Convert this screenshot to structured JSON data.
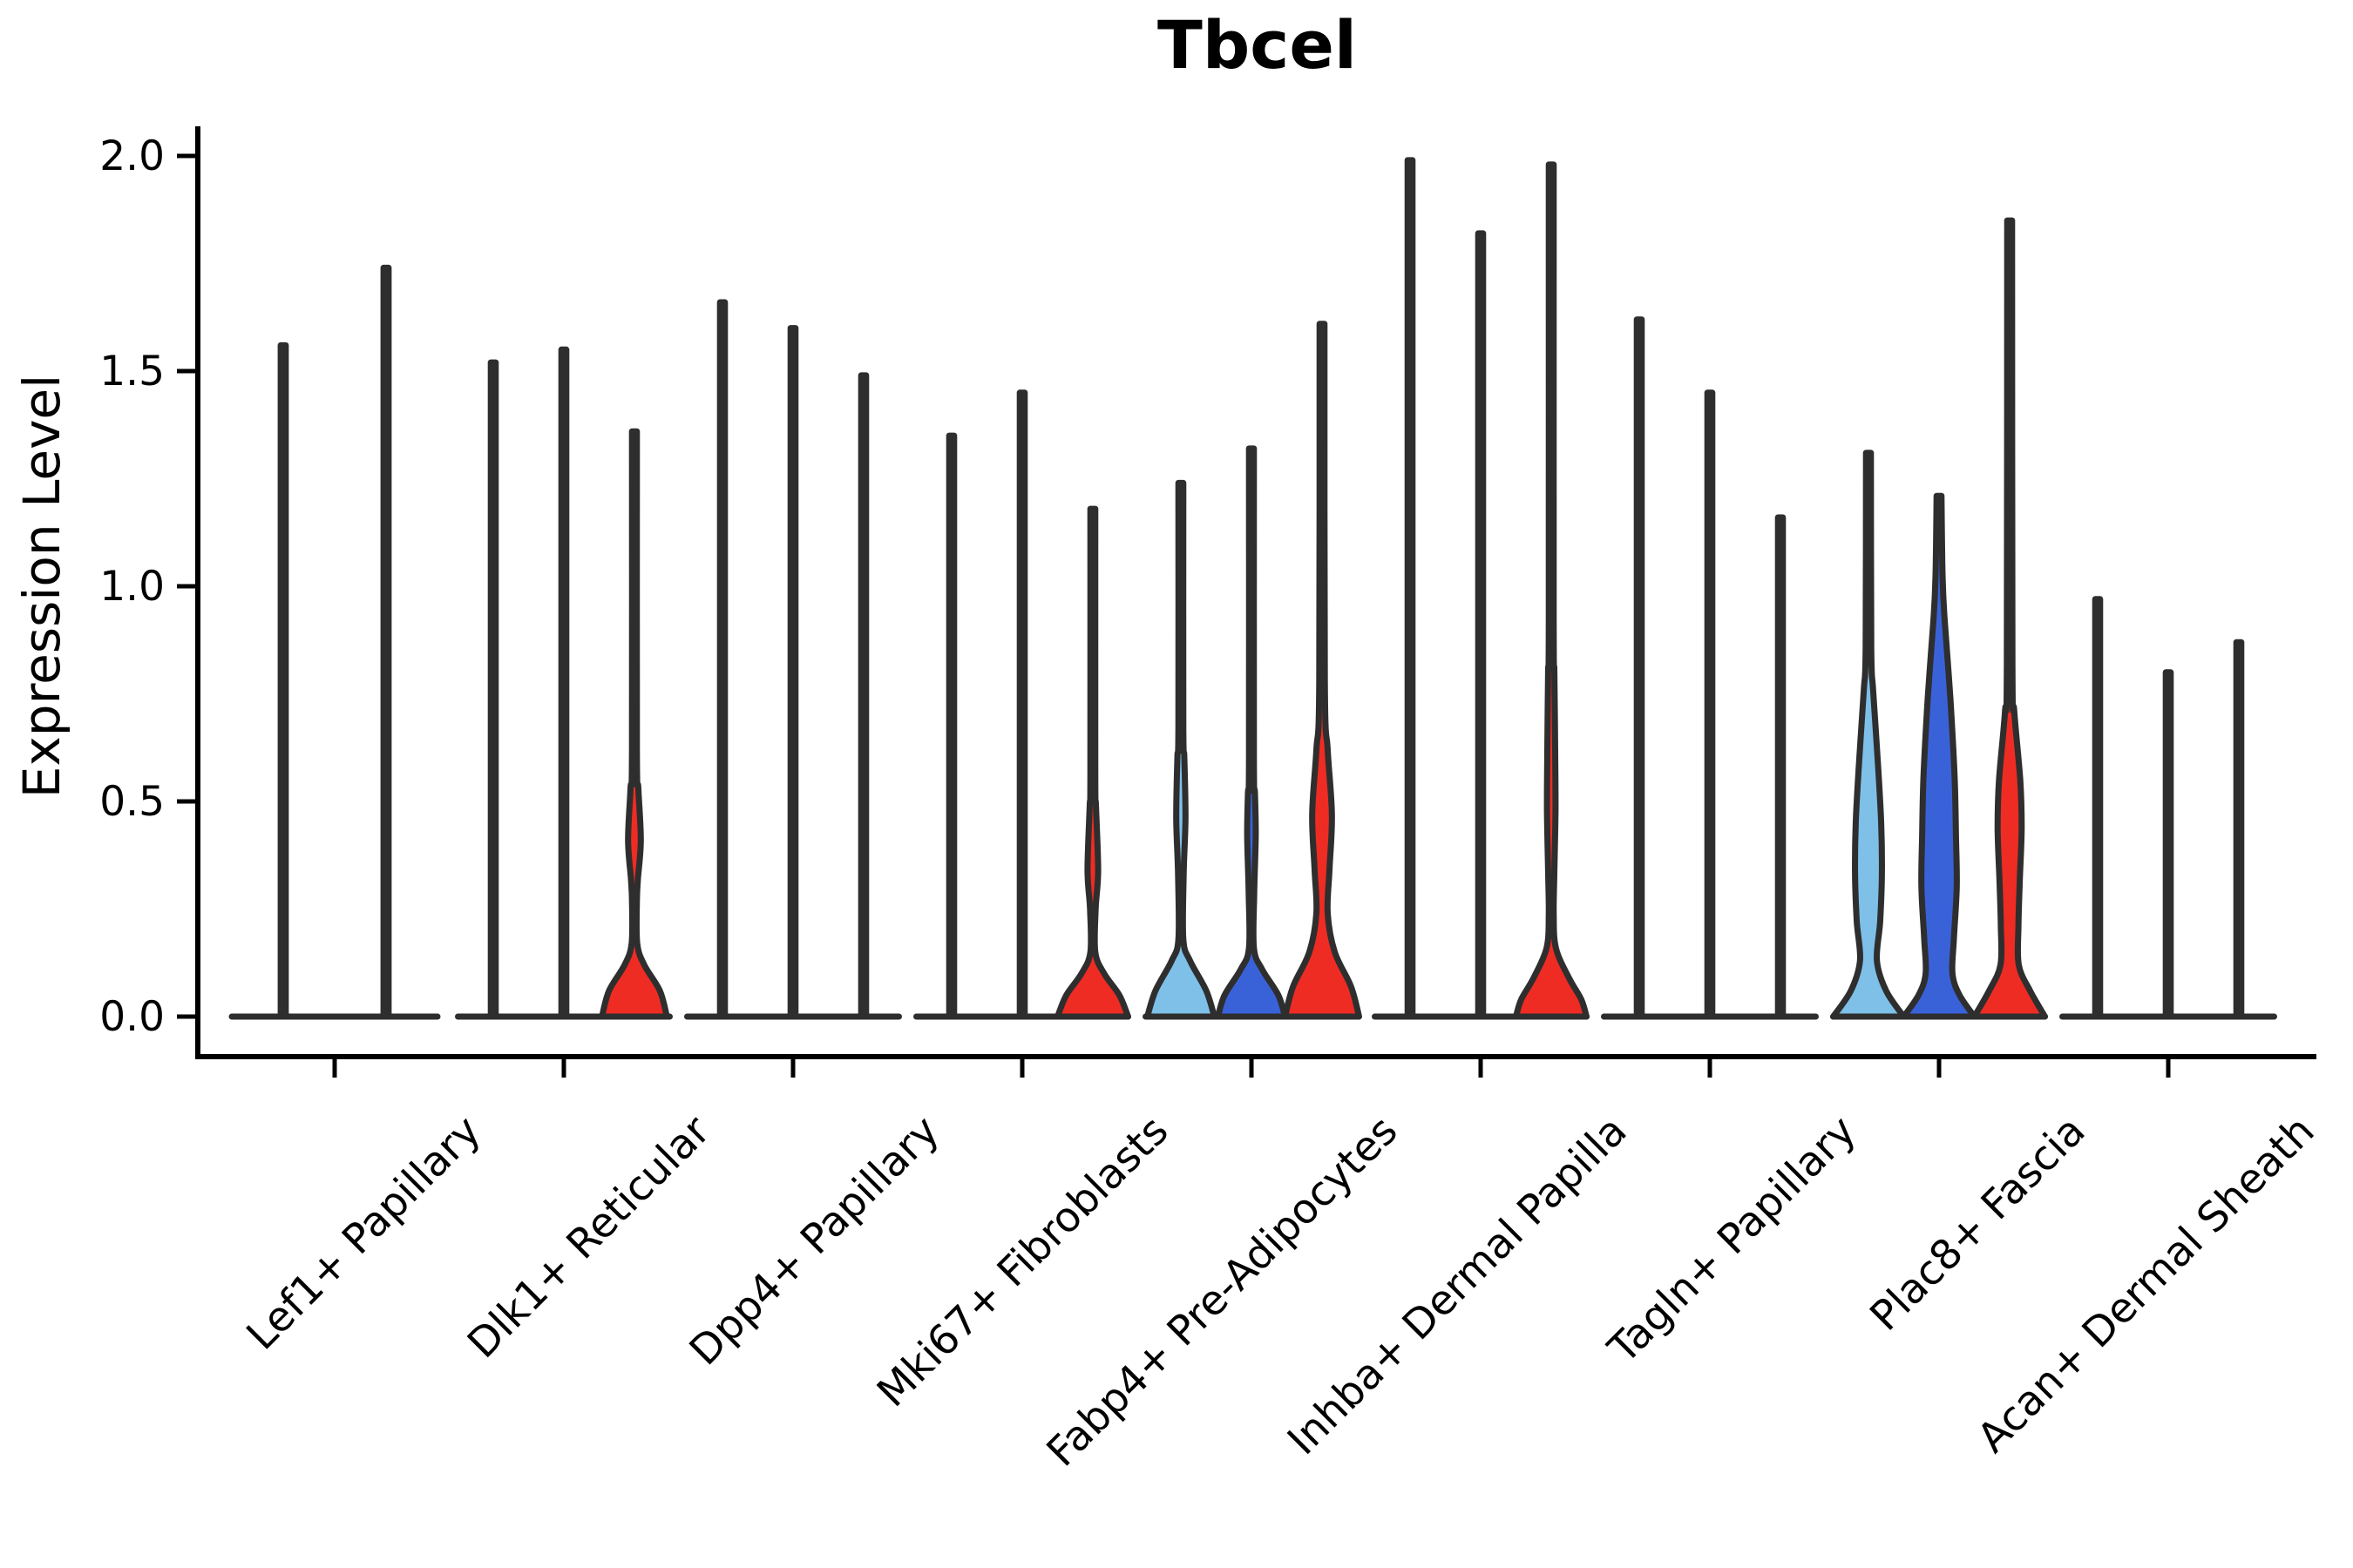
{
  "title": "Tbcel",
  "axes": {
    "ylabel": "Expression Level",
    "ytick_labels": [
      "0.0",
      "0.5",
      "1.0",
      "1.5",
      "2.0"
    ],
    "ytick_values": [
      0.0,
      0.5,
      1.0,
      1.5,
      2.0
    ],
    "ylim": [
      0.0,
      2.05
    ]
  },
  "colors": {
    "light_blue": "#7EC0E8",
    "dark_blue": "#3A62D8",
    "red": "#EE2C24",
    "outline": "#2E2E2E",
    "axis": "#000000"
  },
  "chart_data": {
    "type": "violin",
    "title": "Tbcel",
    "xlabel": "",
    "ylabel": "Expression Level",
    "ylim": [
      0.0,
      2.05
    ],
    "grid": false,
    "legend": "none",
    "categories": [
      "Lef1+ Papillary",
      "Dlk1+ Reticular",
      "Dpp4+ Papillary",
      "Mki67+ Fibroblasts",
      "Fabp4+ Pre-Adipocytes",
      "Inhba+ Dermal Papilla",
      "Tagln+ Papillary",
      "Plac8+ Fascia",
      "Acan+ Dermal Sheath"
    ],
    "splits": [
      "light-blue",
      "dark-blue",
      "red"
    ],
    "violins": [
      {
        "category": "Lef1+ Papillary",
        "cat_index": 0,
        "slot": 0,
        "n_slots": 2,
        "split": null,
        "fill": null,
        "max": 1.56,
        "profile": [
          [
            1.56,
            0.05
          ],
          [
            0.0,
            0.05
          ]
        ]
      },
      {
        "category": "Lef1+ Papillary",
        "cat_index": 0,
        "slot": 1,
        "n_slots": 2,
        "split": null,
        "fill": null,
        "max": 1.74,
        "profile": [
          [
            1.74,
            0.05
          ],
          [
            0.0,
            0.05
          ]
        ]
      },
      {
        "category": "Dlk1+ Reticular",
        "cat_index": 1,
        "slot": 0,
        "n_slots": 3,
        "split": "light-blue",
        "fill": "#7EC0E8",
        "max": 1.52,
        "profile": [
          [
            1.52,
            0.07
          ],
          [
            0.0,
            0.07
          ]
        ]
      },
      {
        "category": "Dlk1+ Reticular",
        "cat_index": 1,
        "slot": 1,
        "n_slots": 3,
        "split": "dark-blue",
        "fill": "#3A62D8",
        "max": 1.55,
        "profile": [
          [
            1.55,
            0.07
          ],
          [
            0.0,
            0.07
          ]
        ]
      },
      {
        "category": "Dlk1+ Reticular",
        "cat_index": 1,
        "slot": 2,
        "n_slots": 3,
        "split": "red",
        "fill": "#EE2C24",
        "max": 1.36,
        "profile": [
          [
            1.36,
            0.07
          ],
          [
            0.62,
            0.07
          ],
          [
            0.53,
            0.11
          ],
          [
            0.41,
            0.18
          ],
          [
            0.32,
            0.1
          ],
          [
            0.27,
            0.07
          ],
          [
            0.17,
            0.08
          ],
          [
            0.12,
            0.28
          ],
          [
            0.06,
            0.72
          ],
          [
            0.0,
            0.92
          ]
        ]
      },
      {
        "category": "Dpp4+ Papillary",
        "cat_index": 2,
        "slot": 0,
        "n_slots": 3,
        "split": "light-blue",
        "fill": "#7EC0E8",
        "max": 1.66,
        "profile": [
          [
            1.66,
            0.07
          ],
          [
            0.0,
            0.07
          ]
        ]
      },
      {
        "category": "Dpp4+ Papillary",
        "cat_index": 2,
        "slot": 1,
        "n_slots": 3,
        "split": "dark-blue",
        "fill": "#3A62D8",
        "max": 1.6,
        "profile": [
          [
            1.6,
            0.07
          ],
          [
            0.0,
            0.07
          ]
        ]
      },
      {
        "category": "Dpp4+ Papillary",
        "cat_index": 2,
        "slot": 2,
        "n_slots": 3,
        "split": "red",
        "fill": "#EE2C24",
        "max": 1.49,
        "profile": [
          [
            1.49,
            0.07
          ],
          [
            0.0,
            0.07
          ]
        ]
      },
      {
        "category": "Mki67+ Fibroblasts",
        "cat_index": 3,
        "slot": 0,
        "n_slots": 3,
        "split": "light-blue",
        "fill": "#7EC0E8",
        "max": 1.35,
        "profile": [
          [
            1.35,
            0.07
          ],
          [
            0.0,
            0.07
          ]
        ]
      },
      {
        "category": "Mki67+ Fibroblasts",
        "cat_index": 3,
        "slot": 1,
        "n_slots": 3,
        "split": "dark-blue",
        "fill": "#3A62D8",
        "max": 1.45,
        "profile": [
          [
            1.45,
            0.07
          ],
          [
            0.0,
            0.07
          ]
        ]
      },
      {
        "category": "Mki67+ Fibroblasts",
        "cat_index": 3,
        "slot": 2,
        "n_slots": 3,
        "split": "red",
        "fill": "#EE2C24",
        "max": 1.18,
        "profile": [
          [
            1.18,
            0.07
          ],
          [
            0.56,
            0.07
          ],
          [
            0.49,
            0.09
          ],
          [
            0.34,
            0.15
          ],
          [
            0.25,
            0.08
          ],
          [
            0.15,
            0.07
          ],
          [
            0.1,
            0.32
          ],
          [
            0.05,
            0.75
          ],
          [
            0.0,
            1.0
          ]
        ]
      },
      {
        "category": "Fabp4+ Pre-Adipocytes",
        "cat_index": 4,
        "slot": 0,
        "n_slots": 3,
        "split": "light-blue",
        "fill": "#7EC0E8",
        "max": 1.24,
        "profile": [
          [
            1.24,
            0.07
          ],
          [
            0.68,
            0.07
          ],
          [
            0.6,
            0.1
          ],
          [
            0.46,
            0.13
          ],
          [
            0.33,
            0.08
          ],
          [
            0.18,
            0.07
          ],
          [
            0.13,
            0.26
          ],
          [
            0.06,
            0.72
          ],
          [
            0.0,
            0.95
          ]
        ]
      },
      {
        "category": "Fabp4+ Pre-Adipocytes",
        "cat_index": 4,
        "slot": 1,
        "n_slots": 3,
        "split": "dark-blue",
        "fill": "#3A62D8",
        "max": 1.32,
        "profile": [
          [
            1.32,
            0.07
          ],
          [
            0.6,
            0.07
          ],
          [
            0.52,
            0.1
          ],
          [
            0.42,
            0.12
          ],
          [
            0.29,
            0.08
          ],
          [
            0.16,
            0.07
          ],
          [
            0.11,
            0.3
          ],
          [
            0.05,
            0.76
          ],
          [
            0.0,
            0.95
          ]
        ]
      },
      {
        "category": "Fabp4+ Pre-Adipocytes",
        "cat_index": 4,
        "slot": 2,
        "n_slots": 3,
        "split": "red",
        "fill": "#EE2C24",
        "max": 1.61,
        "profile": [
          [
            1.61,
            0.07
          ],
          [
            0.78,
            0.08
          ],
          [
            0.62,
            0.16
          ],
          [
            0.47,
            0.28
          ],
          [
            0.34,
            0.21
          ],
          [
            0.24,
            0.16
          ],
          [
            0.15,
            0.36
          ],
          [
            0.07,
            0.82
          ],
          [
            0.0,
            1.05
          ]
        ]
      },
      {
        "category": "Inhba+ Dermal Papilla",
        "cat_index": 5,
        "slot": 0,
        "n_slots": 3,
        "split": "light-blue",
        "fill": "#7EC0E8",
        "max": 1.99,
        "profile": [
          [
            1.99,
            0.07
          ],
          [
            0.0,
            0.07
          ]
        ]
      },
      {
        "category": "Inhba+ Dermal Papilla",
        "cat_index": 5,
        "slot": 1,
        "n_slots": 3,
        "split": "dark-blue",
        "fill": "#3A62D8",
        "max": 1.82,
        "profile": [
          [
            1.82,
            0.07
          ],
          [
            0.0,
            0.07
          ]
        ]
      },
      {
        "category": "Inhba+ Dermal Papilla",
        "cat_index": 5,
        "slot": 2,
        "n_slots": 3,
        "split": "red",
        "fill": "#EE2C24",
        "max": 1.98,
        "profile": [
          [
            1.98,
            0.07
          ],
          [
            0.92,
            0.07
          ],
          [
            0.8,
            0.09
          ],
          [
            0.62,
            0.11
          ],
          [
            0.48,
            0.12
          ],
          [
            0.34,
            0.09
          ],
          [
            0.24,
            0.07
          ],
          [
            0.16,
            0.13
          ],
          [
            0.09,
            0.5
          ],
          [
            0.04,
            0.85
          ],
          [
            0.0,
            1.0
          ]
        ]
      },
      {
        "category": "Tagln+ Papillary",
        "cat_index": 6,
        "slot": 0,
        "n_slots": 3,
        "split": "light-blue",
        "fill": "#7EC0E8",
        "max": 1.62,
        "profile": [
          [
            1.62,
            0.07
          ],
          [
            0.0,
            0.07
          ]
        ]
      },
      {
        "category": "Tagln+ Papillary",
        "cat_index": 6,
        "slot": 1,
        "n_slots": 3,
        "split": "dark-blue",
        "fill": "#3A62D8",
        "max": 1.45,
        "profile": [
          [
            1.45,
            0.07
          ],
          [
            0.0,
            0.07
          ]
        ]
      },
      {
        "category": "Tagln+ Papillary",
        "cat_index": 6,
        "slot": 2,
        "n_slots": 3,
        "split": "red",
        "fill": "#EE2C24",
        "max": 1.16,
        "profile": [
          [
            1.16,
            0.07
          ],
          [
            0.0,
            0.07
          ]
        ]
      },
      {
        "category": "Plac8+ Fascia",
        "cat_index": 7,
        "slot": 0,
        "n_slots": 3,
        "split": "light-blue",
        "fill": "#7EC0E8",
        "max": 1.31,
        "profile": [
          [
            1.31,
            0.07
          ],
          [
            0.86,
            0.08
          ],
          [
            0.76,
            0.13
          ],
          [
            0.6,
            0.26
          ],
          [
            0.45,
            0.36
          ],
          [
            0.33,
            0.38
          ],
          [
            0.22,
            0.33
          ],
          [
            0.13,
            0.24
          ],
          [
            0.06,
            0.5
          ],
          [
            0.0,
            1.0
          ]
        ]
      },
      {
        "category": "Plac8+ Fascia",
        "cat_index": 7,
        "slot": 1,
        "n_slots": 3,
        "split": "dark-blue",
        "fill": "#3A62D8",
        "max": 1.21,
        "profile": [
          [
            1.21,
            0.07
          ],
          [
            1.02,
            0.1
          ],
          [
            0.92,
            0.16
          ],
          [
            0.74,
            0.32
          ],
          [
            0.56,
            0.44
          ],
          [
            0.42,
            0.48
          ],
          [
            0.3,
            0.5
          ],
          [
            0.18,
            0.42
          ],
          [
            0.1,
            0.38
          ],
          [
            0.05,
            0.58
          ],
          [
            0.0,
            1.0
          ]
        ]
      },
      {
        "category": "Plac8+ Fascia",
        "cat_index": 7,
        "slot": 2,
        "n_slots": 3,
        "split": "red",
        "fill": "#EE2C24",
        "max": 1.85,
        "profile": [
          [
            1.85,
            0.07
          ],
          [
            0.82,
            0.08
          ],
          [
            0.71,
            0.13
          ],
          [
            0.55,
            0.3
          ],
          [
            0.44,
            0.34
          ],
          [
            0.32,
            0.29
          ],
          [
            0.21,
            0.25
          ],
          [
            0.12,
            0.26
          ],
          [
            0.06,
            0.58
          ],
          [
            0.0,
            1.0
          ]
        ]
      },
      {
        "category": "Acan+ Dermal Sheath",
        "cat_index": 8,
        "slot": 0,
        "n_slots": 3,
        "split": "light-blue",
        "fill": "#7EC0E8",
        "max": 0.97,
        "profile": [
          [
            0.97,
            0.07
          ],
          [
            0.0,
            0.07
          ]
        ]
      },
      {
        "category": "Acan+ Dermal Sheath",
        "cat_index": 8,
        "slot": 1,
        "n_slots": 3,
        "split": "dark-blue",
        "fill": "#3A62D8",
        "max": 0.8,
        "profile": [
          [
            0.8,
            0.07
          ],
          [
            0.0,
            0.07
          ]
        ]
      },
      {
        "category": "Acan+ Dermal Sheath",
        "cat_index": 8,
        "slot": 2,
        "n_slots": 3,
        "split": "red",
        "fill": "#EE2C24",
        "max": 0.87,
        "profile": [
          [
            0.87,
            0.07
          ],
          [
            0.0,
            0.07
          ]
        ]
      }
    ]
  }
}
